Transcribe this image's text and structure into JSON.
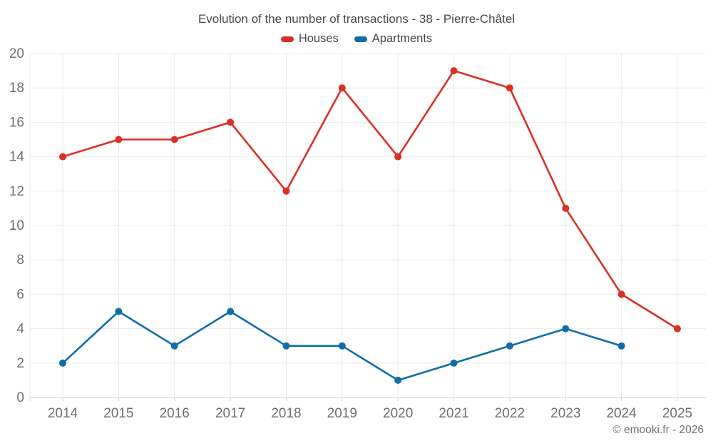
{
  "header": {
    "title": "Evolution of the number of transactions - 38 - Pierre-Châtel"
  },
  "legend": {
    "items": [
      {
        "label": "Houses",
        "color": "#d93026"
      },
      {
        "label": "Apartments",
        "color": "#116da8"
      }
    ]
  },
  "footer": {
    "credit": "© emooki.fr - 2026"
  },
  "colors": {
    "houses": "#d93026",
    "apartments": "#116da8",
    "grid": "#ebebeb",
    "axis": "#cfd2d6",
    "tick_label": "#6d7073",
    "title_text": "#45494e"
  },
  "chart_data": {
    "type": "line",
    "title": "Evolution of the number of transactions - 38 - Pierre-Châtel",
    "x": [
      2014,
      2015,
      2016,
      2017,
      2018,
      2019,
      2020,
      2021,
      2022,
      2023,
      2024,
      2025
    ],
    "series": [
      {
        "name": "Houses",
        "color": "#d93026",
        "values": [
          14,
          15,
          15,
          16,
          12,
          18,
          14,
          19,
          18,
          11,
          6,
          4
        ]
      },
      {
        "name": "Apartments",
        "color": "#116da8",
        "values": [
          2,
          5,
          3,
          5,
          3,
          3,
          1,
          2,
          3,
          4,
          3,
          null
        ]
      }
    ],
    "xlabel": "",
    "ylabel": "",
    "ylim": [
      0,
      20
    ],
    "ytick_step": 2,
    "grid": true,
    "legend_position": "top",
    "marker": "circle"
  }
}
